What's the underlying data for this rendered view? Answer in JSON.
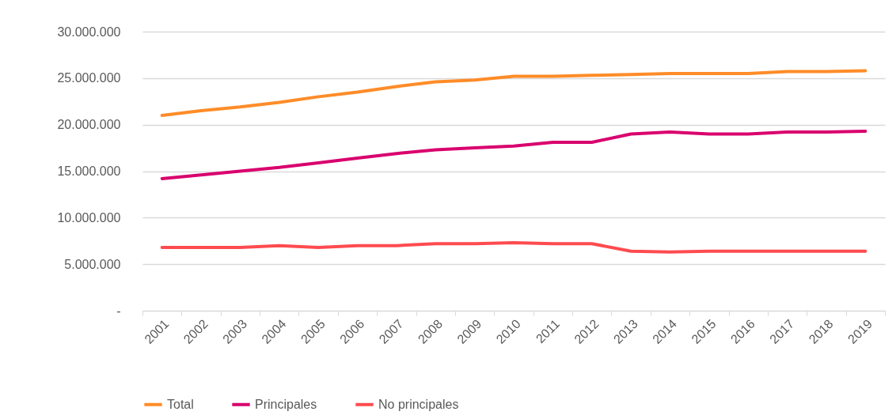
{
  "chart_data": {
    "type": "line",
    "categories": [
      "2001",
      "2002",
      "2003",
      "2004",
      "2005",
      "2006",
      "2007",
      "2008",
      "2009",
      "2010",
      "2011",
      "2012",
      "2013",
      "2014",
      "2015",
      "2016",
      "2017",
      "2018",
      "2019"
    ],
    "series": [
      {
        "name": "Total",
        "color": "#ff8c28",
        "values": [
          21000000,
          21500000,
          21900000,
          22400000,
          23000000,
          23500000,
          24100000,
          24600000,
          24800000,
          25200000,
          25200000,
          25300000,
          25400000,
          25500000,
          25500000,
          25500000,
          25700000,
          25700000,
          25800000
        ]
      },
      {
        "name": "Principales",
        "color": "#d9006e",
        "values": [
          14200000,
          14600000,
          15000000,
          15400000,
          15900000,
          16400000,
          16900000,
          17300000,
          17500000,
          17700000,
          18100000,
          18100000,
          19000000,
          19200000,
          19000000,
          19000000,
          19200000,
          19200000,
          19300000
        ]
      },
      {
        "name": "No principales",
        "color": "#ff4b4f",
        "values": [
          6800000,
          6800000,
          6800000,
          7000000,
          6800000,
          7000000,
          7000000,
          7200000,
          7200000,
          7300000,
          7200000,
          7200000,
          6400000,
          6300000,
          6400000,
          6400000,
          6400000,
          6400000,
          6400000
        ]
      }
    ],
    "ylim": [
      0,
      30000000
    ],
    "yticks": [
      {
        "value": 0,
        "label": "-"
      },
      {
        "value": 5000000,
        "label": "5.000.000"
      },
      {
        "value": 10000000,
        "label": "10.000.000"
      },
      {
        "value": 15000000,
        "label": "15.000.000"
      },
      {
        "value": 20000000,
        "label": "20.000.000"
      },
      {
        "value": 25000000,
        "label": "25.000.000"
      },
      {
        "value": 30000000,
        "label": "30.000.000"
      }
    ],
    "grid": "y",
    "legend": "bottom",
    "marker": "none",
    "line_style": "solid"
  }
}
